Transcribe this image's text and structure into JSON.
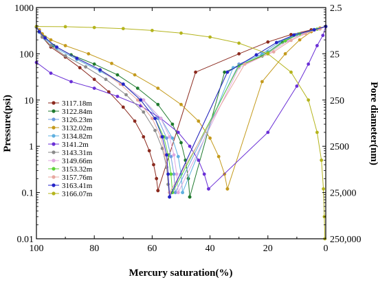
{
  "chart_data": {
    "type": "line",
    "title": "",
    "xlabel": "Mercury saturation(%)",
    "ylabel": "Pressure(psi)",
    "y2label": "Pore diameter(nm)",
    "xlim": [
      100,
      0
    ],
    "x_reversed": true,
    "ylim": [
      0.01,
      1000
    ],
    "yscale": "log",
    "x_ticks": [
      "100",
      "80",
      "60",
      "40",
      "20",
      "0"
    ],
    "y_ticks": [
      "0.01",
      "0.1",
      "1",
      "10",
      "100",
      "1000"
    ],
    "y2_ticks": [
      "250,000",
      "25,000",
      "2500",
      "250",
      "25",
      "2.5"
    ],
    "grid": false,
    "legend_position": "left-middle",
    "series": [
      {
        "name": "3117.18m",
        "color": "#8b2a1f",
        "intrusion": [
          [
            100,
            380
          ],
          [
            99,
            300
          ],
          [
            98,
            230
          ],
          [
            95,
            140
          ],
          [
            90,
            85
          ],
          [
            85,
            50
          ],
          [
            80,
            28
          ],
          [
            75,
            15
          ],
          [
            70,
            7
          ],
          [
            66,
            3.5
          ],
          [
            63,
            1.6
          ],
          [
            61,
            0.8
          ],
          [
            59.5,
            0.4
          ],
          [
            58.5,
            0.2
          ],
          [
            58,
            0.11
          ]
        ],
        "extrusion": [
          [
            58,
            0.11
          ],
          [
            45,
            40
          ],
          [
            30,
            100
          ],
          [
            20,
            180
          ],
          [
            12,
            260
          ],
          [
            5,
            330
          ],
          [
            0,
            390
          ]
        ]
      },
      {
        "name": "3122.84m",
        "color": "#1f7a2e",
        "intrusion": [
          [
            100,
            380
          ],
          [
            99,
            300
          ],
          [
            97,
            230
          ],
          [
            94,
            150
          ],
          [
            88,
            95
          ],
          [
            80,
            60
          ],
          [
            72,
            35
          ],
          [
            65,
            18
          ],
          [
            58,
            8
          ],
          [
            53,
            3
          ],
          [
            50,
            1.2
          ],
          [
            48.5,
            0.5
          ],
          [
            47.5,
            0.2
          ],
          [
            47,
            0.08
          ]
        ],
        "extrusion": [
          [
            47,
            0.08
          ],
          [
            35,
            40
          ],
          [
            22,
            90
          ],
          [
            15,
            180
          ],
          [
            10,
            260
          ],
          [
            4,
            330
          ],
          [
            0,
            390
          ]
        ]
      },
      {
        "name": "3126.23m",
        "color": "#6e9be0",
        "intrusion": [
          [
            100,
            380
          ],
          [
            99,
            300
          ],
          [
            97,
            220
          ],
          [
            93,
            140
          ],
          [
            86,
            80
          ],
          [
            78,
            45
          ],
          [
            70,
            22
          ],
          [
            63,
            10
          ],
          [
            58,
            4
          ],
          [
            55,
            1.5
          ],
          [
            53.5,
            0.6
          ],
          [
            52.5,
            0.25
          ],
          [
            52,
            0.1
          ]
        ],
        "extrusion": [
          [
            52,
            0.1
          ],
          [
            30,
            60
          ],
          [
            20,
            110
          ],
          [
            14,
            190
          ],
          [
            9,
            270
          ],
          [
            3,
            340
          ],
          [
            0,
            390
          ]
        ]
      },
      {
        "name": "3132.02m",
        "color": "#c49a1c",
        "intrusion": [
          [
            100,
            380
          ],
          [
            99,
            330
          ],
          [
            98,
            270
          ],
          [
            95,
            200
          ],
          [
            90,
            150
          ],
          [
            82,
            100
          ],
          [
            74,
            62
          ],
          [
            66,
            35
          ],
          [
            58,
            18
          ],
          [
            50,
            8
          ],
          [
            44,
            3.5
          ],
          [
            40,
            1.5
          ],
          [
            37,
            0.6
          ],
          [
            35,
            0.25
          ],
          [
            34,
            0.12
          ]
        ],
        "extrusion": [
          [
            34,
            0.12
          ],
          [
            22,
            25
          ],
          [
            14,
            100
          ],
          [
            9,
            200
          ],
          [
            5,
            300
          ],
          [
            2,
            360
          ],
          [
            0,
            390
          ]
        ]
      },
      {
        "name": "3134.82m",
        "color": "#5fb0e0",
        "intrusion": [
          [
            100,
            380
          ],
          [
            99,
            290
          ],
          [
            97,
            210
          ],
          [
            93,
            130
          ],
          [
            86,
            75
          ],
          [
            78,
            42
          ],
          [
            70,
            22
          ],
          [
            63,
            10
          ],
          [
            57,
            4
          ],
          [
            53,
            1.5
          ],
          [
            51,
            0.6
          ],
          [
            50,
            0.25
          ],
          [
            49.5,
            0.1
          ]
        ],
        "extrusion": [
          [
            49.5,
            0.1
          ],
          [
            32,
            50
          ],
          [
            22,
            100
          ],
          [
            16,
            180
          ],
          [
            10,
            260
          ],
          [
            4,
            335
          ],
          [
            0,
            390
          ]
        ]
      },
      {
        "name": "3141.2m",
        "color": "#6a2fd6",
        "intrusion": [
          [
            100,
            65
          ],
          [
            95,
            38
          ],
          [
            88,
            25
          ],
          [
            80,
            18
          ],
          [
            72,
            12
          ],
          [
            64,
            7.5
          ],
          [
            57,
            4
          ],
          [
            51,
            2
          ],
          [
            47,
            1
          ],
          [
            44,
            0.5
          ],
          [
            42,
            0.25
          ],
          [
            40.5,
            0.12
          ]
        ],
        "extrusion": [
          [
            40.5,
            0.12
          ],
          [
            20,
            2
          ],
          [
            10,
            20
          ],
          [
            6,
            60
          ],
          [
            3,
            150
          ],
          [
            1,
            250
          ],
          [
            0,
            390
          ]
        ]
      },
      {
        "name": "3143.31m",
        "color": "#8a8a8a",
        "intrusion": [
          [
            100,
            380
          ],
          [
            99,
            300
          ],
          [
            98,
            230
          ],
          [
            95,
            150
          ],
          [
            90,
            90
          ],
          [
            83,
            52
          ],
          [
            76,
            28
          ],
          [
            69,
            13
          ],
          [
            63,
            5.5
          ],
          [
            59,
            2.2
          ],
          [
            56.5,
            0.9
          ],
          [
            55,
            0.35
          ],
          [
            54.5,
            0.15
          ],
          [
            54,
            0.08
          ]
        ],
        "extrusion": [
          [
            54,
            0.08
          ],
          [
            34,
            40
          ],
          [
            24,
            95
          ],
          [
            17,
            175
          ],
          [
            11,
            255
          ],
          [
            4,
            330
          ],
          [
            0,
            390
          ]
        ]
      },
      {
        "name": "3149.66m",
        "color": "#e0a8e0",
        "intrusion": [
          [
            100,
            380
          ],
          [
            99,
            300
          ],
          [
            97,
            220
          ],
          [
            93,
            140
          ],
          [
            86,
            80
          ],
          [
            78,
            45
          ],
          [
            70,
            22
          ],
          [
            63,
            10
          ],
          [
            57,
            4
          ],
          [
            54,
            1.6
          ],
          [
            52.5,
            0.65
          ],
          [
            51.5,
            0.25
          ],
          [
            51,
            0.1
          ]
        ],
        "extrusion": [
          [
            51,
            0.1
          ],
          [
            30,
            50
          ],
          [
            20,
            100
          ],
          [
            13,
            190
          ],
          [
            8,
            270
          ],
          [
            3,
            340
          ],
          [
            0,
            390
          ]
        ]
      },
      {
        "name": "3153.32m",
        "color": "#5ed13a",
        "intrusion": [
          [
            100,
            380
          ],
          [
            99,
            300
          ],
          [
            97,
            220
          ],
          [
            93,
            140
          ],
          [
            86,
            80
          ],
          [
            78,
            45
          ],
          [
            70,
            22
          ],
          [
            64,
            10
          ],
          [
            59,
            4
          ],
          [
            56,
            1.6
          ],
          [
            54.5,
            0.65
          ],
          [
            53.5,
            0.25
          ],
          [
            53,
            0.1
          ]
        ],
        "extrusion": [
          [
            53,
            0.1
          ],
          [
            30,
            55
          ],
          [
            20,
            105
          ],
          [
            14,
            190
          ],
          [
            9,
            270
          ],
          [
            3,
            340
          ],
          [
            0,
            390
          ]
        ]
      },
      {
        "name": "3157.76m",
        "color": "#e8a8a0",
        "intrusion": [
          [
            100,
            380
          ],
          [
            99,
            300
          ],
          [
            97,
            220
          ],
          [
            93,
            140
          ],
          [
            86,
            80
          ],
          [
            78,
            45
          ],
          [
            71,
            22
          ],
          [
            65,
            10
          ],
          [
            60,
            4
          ],
          [
            57,
            1.6
          ],
          [
            55.5,
            0.65
          ],
          [
            54.5,
            0.25
          ],
          [
            54,
            0.1
          ]
        ],
        "extrusion": [
          [
            54,
            0.1
          ],
          [
            28,
            60
          ],
          [
            18,
            110
          ],
          [
            12,
            195
          ],
          [
            7,
            275
          ],
          [
            2,
            345
          ],
          [
            0,
            390
          ]
        ]
      },
      {
        "name": "3163.41m",
        "color": "#2424c8",
        "intrusion": [
          [
            100,
            380
          ],
          [
            99,
            300
          ],
          [
            97,
            220
          ],
          [
            93,
            140
          ],
          [
            86,
            80
          ],
          [
            78,
            45
          ],
          [
            70,
            22
          ],
          [
            64,
            10
          ],
          [
            59,
            4
          ],
          [
            56.5,
            1.6
          ],
          [
            55,
            0.65
          ],
          [
            54.5,
            0.25
          ],
          [
            54,
            0.08
          ]
        ],
        "extrusion": [
          [
            54,
            0.08
          ],
          [
            34,
            40
          ],
          [
            24,
            95
          ],
          [
            17,
            175
          ],
          [
            11,
            255
          ],
          [
            4,
            330
          ],
          [
            0,
            390
          ]
        ]
      },
      {
        "name": "3166.07m",
        "color": "#b4b41c",
        "intrusion": [
          [
            100,
            390
          ],
          [
            90,
            385
          ],
          [
            80,
            370
          ],
          [
            70,
            350
          ],
          [
            60,
            320
          ],
          [
            50,
            280
          ],
          [
            40,
            230
          ],
          [
            30,
            170
          ],
          [
            20,
            100
          ],
          [
            12,
            40
          ],
          [
            6,
            10
          ],
          [
            3,
            2
          ],
          [
            1.5,
            0.5
          ],
          [
            0.8,
            0.12
          ],
          [
            0.5,
            0.03
          ],
          [
            0.3,
            0.01
          ]
        ],
        "extrusion": []
      }
    ]
  }
}
